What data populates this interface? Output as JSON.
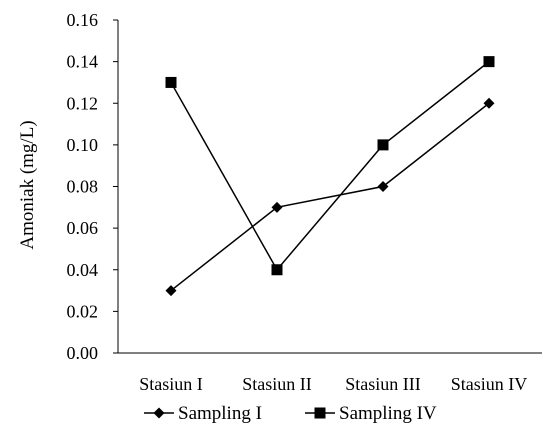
{
  "chart_data": {
    "type": "line",
    "title": "",
    "xlabel": "",
    "ylabel": "Amoniak (mg/L)",
    "categories": [
      "Stasiun I",
      "Stasiun II",
      "Stasiun III",
      "Stasiun IV"
    ],
    "ylim": [
      0,
      0.16
    ],
    "yticks": [
      "0.00",
      "0.02",
      "0.04",
      "0.06",
      "0.08",
      "0.10",
      "0.12",
      "0.14",
      "0.16"
    ],
    "grid": false,
    "legend_position": "bottom",
    "series": [
      {
        "name": "Sampling I",
        "marker": "diamond",
        "color": "#000000",
        "values": [
          0.03,
          0.07,
          0.08,
          0.12
        ]
      },
      {
        "name": "Sampling IV",
        "marker": "square",
        "color": "#000000",
        "values": [
          0.13,
          0.04,
          0.1,
          0.14
        ]
      }
    ]
  }
}
